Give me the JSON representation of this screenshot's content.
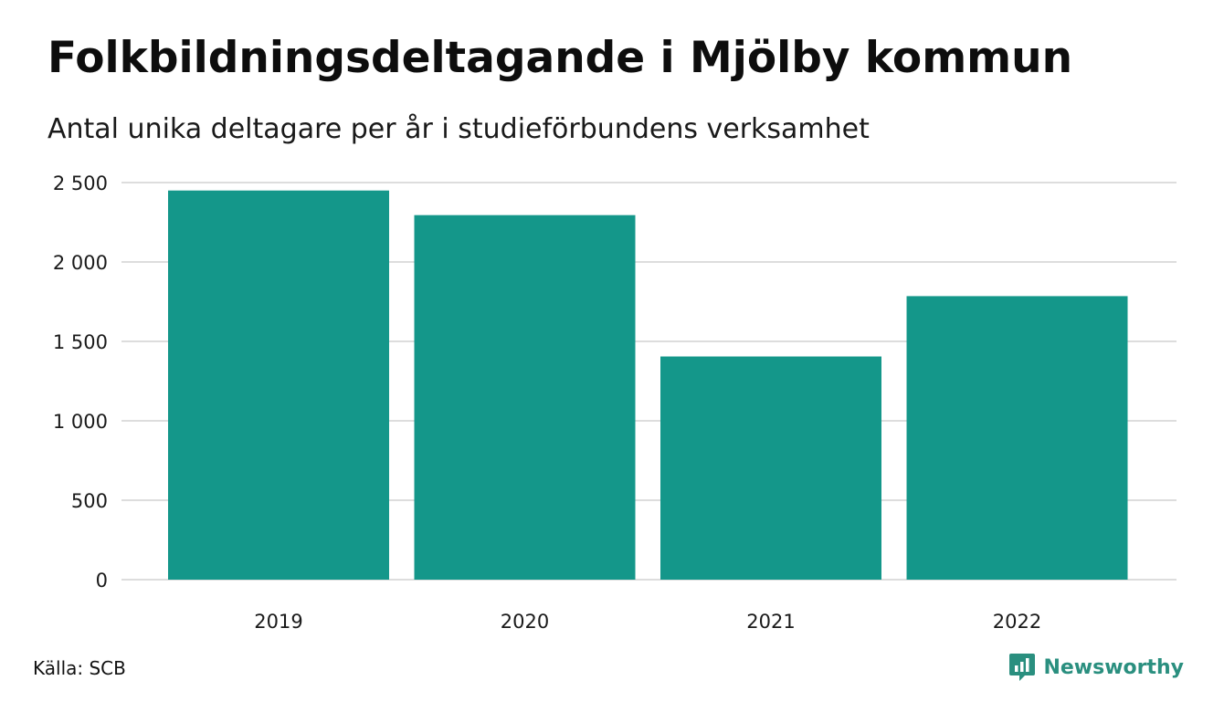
{
  "header": {
    "title": "Folkbildningsdeltagande i Mjölby kommun",
    "subtitle": "Antal unika deltagare per år i studieförbundens verksamhet"
  },
  "footer": {
    "source": "Källa: SCB",
    "brand": "Newsworthy",
    "brand_icon": "newsworthy-logo-icon"
  },
  "colors": {
    "bar": "#14978a",
    "grid": "#dddddd",
    "brand": "#2a8f7f"
  },
  "chart_data": {
    "type": "bar",
    "categories": [
      "2019",
      "2020",
      "2021",
      "2022"
    ],
    "values": [
      2450,
      2295,
      1405,
      1785
    ],
    "title": "Folkbildningsdeltagande i Mjölby kommun",
    "subtitle": "Antal unika deltagare per år i studieförbundens verksamhet",
    "xlabel": "",
    "ylabel": "",
    "ylim": [
      0,
      2500
    ],
    "yticks": [
      0,
      500,
      1000,
      1500,
      2000,
      2500
    ],
    "ytick_labels": [
      "0",
      "500",
      "1 000",
      "1 500",
      "2 000",
      "2 500"
    ],
    "grid": true,
    "legend": "none"
  }
}
